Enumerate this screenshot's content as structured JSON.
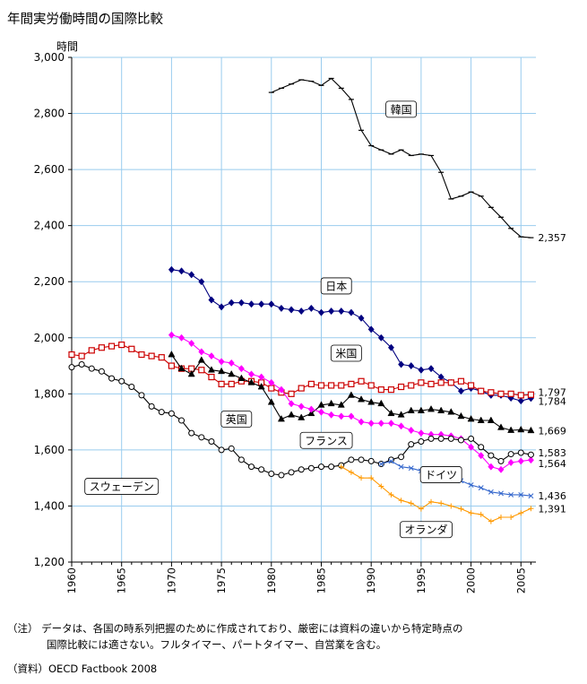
{
  "chart_data": {
    "type": "line",
    "title": "年間実労働時間の国際比較",
    "ylabel": "時間",
    "xlabel": "",
    "ylim": [
      1200,
      3000
    ],
    "xlim": [
      1960,
      2006.5
    ],
    "yticks": [
      1200,
      1400,
      1600,
      1800,
      2000,
      2200,
      2400,
      2600,
      2800,
      3000
    ],
    "ytick_labels": [
      "1,200",
      "1,400",
      "1,600",
      "1,800",
      "2,000",
      "2,200",
      "2,400",
      "2,600",
      "2,800",
      "3,000"
    ],
    "xticks": [
      1960,
      1965,
      1970,
      1975,
      1980,
      1985,
      1990,
      1995,
      2000,
      2005
    ],
    "xtick_labels": [
      "1960",
      "1965",
      "1970",
      "1975",
      "1980",
      "1985",
      "1990",
      "1995",
      "2000",
      "2005"
    ],
    "grid": true,
    "series": [
      {
        "name": "韓国",
        "color": "#000000",
        "marker": "dash",
        "label_pos": [
          1993,
          2815
        ],
        "end_label": "2,357",
        "x": [
          1980,
          1981,
          1982,
          1983,
          1984,
          1985,
          1986,
          1987,
          1988,
          1989,
          1990,
          1991,
          1992,
          1993,
          1994,
          1995,
          1996,
          1997,
          1998,
          1999,
          2000,
          2001,
          2002,
          2003,
          2004,
          2005,
          2006
        ],
        "values": [
          2875,
          2890,
          2905,
          2920,
          2915,
          2900,
          2925,
          2890,
          2850,
          2740,
          2685,
          2670,
          2655,
          2670,
          2650,
          2655,
          2650,
          2590,
          2495,
          2505,
          2520,
          2505,
          2465,
          2430,
          2390,
          2360,
          2357
        ]
      },
      {
        "name": "日本",
        "color": "#000080",
        "marker": "diamond",
        "label_pos": [
          1986.5,
          2185
        ],
        "end_label": "1,784",
        "x": [
          1970,
          1971,
          1972,
          1973,
          1974,
          1975,
          1976,
          1977,
          1978,
          1979,
          1980,
          1981,
          1982,
          1983,
          1984,
          1985,
          1986,
          1987,
          1988,
          1989,
          1990,
          1991,
          1992,
          1993,
          1994,
          1995,
          1996,
          1997,
          1998,
          1999,
          2000,
          2001,
          2002,
          2003,
          2004,
          2005,
          2006
        ],
        "values": [
          2243,
          2238,
          2225,
          2200,
          2135,
          2110,
          2125,
          2125,
          2120,
          2120,
          2120,
          2105,
          2100,
          2095,
          2105,
          2090,
          2095,
          2095,
          2090,
          2070,
          2030,
          2000,
          1965,
          1905,
          1900,
          1885,
          1890,
          1860,
          1840,
          1810,
          1820,
          1810,
          1795,
          1795,
          1785,
          1775,
          1784
        ]
      },
      {
        "name": "米国",
        "color": "#cc0000",
        "marker": "square",
        "label_pos": [
          1987.5,
          1945
        ],
        "end_label": "1,797",
        "x": [
          1960,
          1961,
          1962,
          1963,
          1964,
          1965,
          1966,
          1967,
          1968,
          1969,
          1970,
          1971,
          1972,
          1973,
          1974,
          1975,
          1976,
          1977,
          1978,
          1979,
          1980,
          1981,
          1982,
          1983,
          1984,
          1985,
          1986,
          1987,
          1988,
          1989,
          1990,
          1991,
          1992,
          1993,
          1994,
          1995,
          1996,
          1997,
          1998,
          1999,
          2000,
          2001,
          2002,
          2003,
          2004,
          2005,
          2006
        ],
        "values": [
          1940,
          1935,
          1955,
          1965,
          1970,
          1975,
          1960,
          1940,
          1935,
          1930,
          1900,
          1890,
          1890,
          1885,
          1860,
          1835,
          1835,
          1845,
          1845,
          1840,
          1820,
          1805,
          1800,
          1820,
          1835,
          1830,
          1830,
          1830,
          1835,
          1845,
          1830,
          1815,
          1815,
          1825,
          1830,
          1840,
          1835,
          1840,
          1840,
          1845,
          1830,
          1810,
          1805,
          1800,
          1800,
          1795,
          1797
        ]
      },
      {
        "name": "英国",
        "color": "#000000",
        "marker": "triangle",
        "label_pos": [
          1976.5,
          1710
        ],
        "end_label": "1,669",
        "x": [
          1970,
          1971,
          1972,
          1973,
          1974,
          1975,
          1976,
          1977,
          1978,
          1979,
          1980,
          1981,
          1982,
          1983,
          1984,
          1985,
          1986,
          1987,
          1988,
          1989,
          1990,
          1991,
          1992,
          1993,
          1994,
          1995,
          1996,
          1997,
          1998,
          1999,
          2000,
          2001,
          2002,
          2003,
          2004,
          2005,
          2006
        ],
        "values": [
          1940,
          1890,
          1870,
          1920,
          1885,
          1880,
          1870,
          1855,
          1840,
          1825,
          1770,
          1710,
          1725,
          1715,
          1730,
          1760,
          1765,
          1760,
          1795,
          1780,
          1770,
          1765,
          1730,
          1725,
          1740,
          1740,
          1745,
          1740,
          1735,
          1720,
          1710,
          1705,
          1705,
          1680,
          1670,
          1672,
          1669
        ]
      },
      {
        "name": "フランス",
        "color": "#ff00ff",
        "marker": "diamond",
        "label_pos": [
          1985.5,
          1634
        ],
        "end_label": "1,564",
        "x": [
          1970,
          1971,
          1972,
          1973,
          1974,
          1975,
          1976,
          1977,
          1978,
          1979,
          1980,
          1981,
          1982,
          1983,
          1984,
          1985,
          1986,
          1987,
          1988,
          1989,
          1990,
          1991,
          1992,
          1993,
          1994,
          1995,
          1996,
          1997,
          1998,
          1999,
          2000,
          2001,
          2002,
          2003,
          2004,
          2005,
          2006
        ],
        "values": [
          2010,
          2000,
          1980,
          1950,
          1935,
          1915,
          1910,
          1890,
          1870,
          1860,
          1840,
          1815,
          1765,
          1755,
          1745,
          1735,
          1725,
          1720,
          1720,
          1700,
          1695,
          1695,
          1695,
          1685,
          1670,
          1660,
          1655,
          1655,
          1650,
          1640,
          1610,
          1580,
          1540,
          1530,
          1555,
          1560,
          1564
        ]
      },
      {
        "name": "スウェーデン",
        "color": "#000000",
        "marker": "circle",
        "label_pos": [
          1965,
          1470
        ],
        "end_label": "1,583",
        "x": [
          1960,
          1961,
          1962,
          1963,
          1964,
          1965,
          1966,
          1967,
          1968,
          1969,
          1970,
          1971,
          1972,
          1973,
          1974,
          1975,
          1976,
          1977,
          1978,
          1979,
          1980,
          1981,
          1982,
          1983,
          1984,
          1985,
          1986,
          1987,
          1988,
          1989,
          1990,
          1991,
          1992,
          1993,
          1994,
          1995,
          1996,
          1997,
          1998,
          1999,
          2000,
          2001,
          2002,
          2003,
          2004,
          2005,
          2006
        ],
        "values": [
          1895,
          1905,
          1890,
          1880,
          1855,
          1845,
          1825,
          1795,
          1755,
          1735,
          1730,
          1705,
          1660,
          1645,
          1630,
          1600,
          1605,
          1565,
          1540,
          1530,
          1515,
          1510,
          1520,
          1530,
          1535,
          1540,
          1540,
          1545,
          1565,
          1565,
          1560,
          1550,
          1565,
          1575,
          1620,
          1630,
          1640,
          1640,
          1640,
          1635,
          1640,
          1610,
          1580,
          1560,
          1585,
          1590,
          1583
        ]
      },
      {
        "name": "ドイツ",
        "color": "#3366cc",
        "marker": "x",
        "label_pos": [
          1997,
          1512
        ],
        "end_label": "1,436",
        "x": [
          1991,
          1992,
          1993,
          1994,
          1995,
          1996,
          1997,
          1998,
          1999,
          2000,
          2001,
          2002,
          2003,
          2004,
          2005,
          2006
        ],
        "values": [
          1550,
          1560,
          1540,
          1535,
          1525,
          1515,
          1510,
          1500,
          1490,
          1475,
          1465,
          1450,
          1445,
          1440,
          1440,
          1436
        ]
      },
      {
        "name": "オランダ",
        "color": "#ff9900",
        "marker": "plus",
        "label_pos": [
          1995.5,
          1316
        ],
        "end_label": "1,391",
        "x": [
          1987,
          1988,
          1989,
          1990,
          1991,
          1992,
          1993,
          1994,
          1995,
          1996,
          1997,
          1998,
          1999,
          2000,
          2001,
          2002,
          2003,
          2004,
          2005,
          2006
        ],
        "values": [
          1540,
          1520,
          1500,
          1500,
          1470,
          1440,
          1420,
          1410,
          1390,
          1415,
          1410,
          1400,
          1390,
          1375,
          1370,
          1345,
          1360,
          1360,
          1375,
          1391
        ]
      }
    ]
  },
  "notes": {
    "note1_line1": "（注）  データは、各国の時系列把握のために作成されており、厳密には資料の違いから特定時点の",
    "note1_line2": "国際比較には適さない。フルタイマー、パートタイマー、自営業を含む。",
    "source": "（資料）OECD Factbook 2008"
  }
}
